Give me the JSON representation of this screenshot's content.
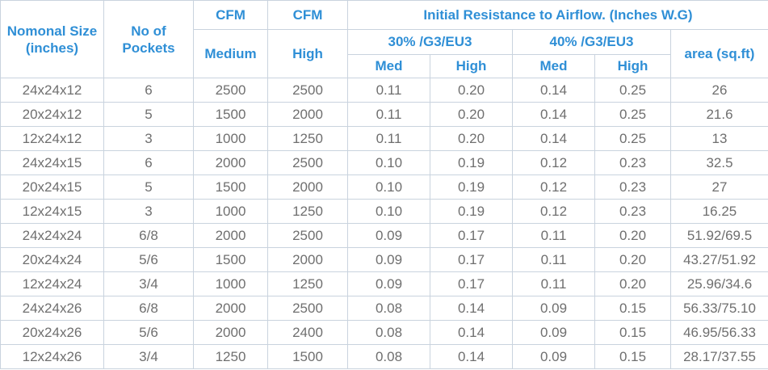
{
  "headers": {
    "nominal_size": "Nomonal Size (inches)",
    "no_of_pockets": "No of Pockets",
    "cfm_top_1": "CFM",
    "cfm_top_2": "CFM",
    "cfm_medium": "Medium",
    "cfm_high": "High",
    "initial_resistance": "Initial Resistance to Airflow. (Inches W.G)",
    "group_30": "30% /G3/EU3",
    "group_40": "40% /G3/EU3",
    "area": "area (sq.ft)",
    "med_30": "Med",
    "high_30": "High",
    "med_40": "Med",
    "high_40": "High"
  },
  "rows": [
    [
      "24x24x12",
      "6",
      "2500",
      "2500",
      "0.11",
      "0.20",
      "0.14",
      "0.25",
      "26"
    ],
    [
      "20x24x12",
      "5",
      "1500",
      "2000",
      "0.11",
      "0.20",
      "0.14",
      "0.25",
      "21.6"
    ],
    [
      "12x24x12",
      "3",
      "1000",
      "1250",
      "0.11",
      "0.20",
      "0.14",
      "0.25",
      "13"
    ],
    [
      "24x24x15",
      "6",
      "2000",
      "2500",
      "0.10",
      "0.19",
      "0.12",
      "0.23",
      "32.5"
    ],
    [
      "20x24x15",
      "5",
      "1500",
      "2000",
      "0.10",
      "0.19",
      "0.12",
      "0.23",
      "27"
    ],
    [
      "12x24x15",
      "3",
      "1000",
      "1250",
      "0.10",
      "0.19",
      "0.12",
      "0.23",
      "16.25"
    ],
    [
      "24x24x24",
      "6/8",
      "2000",
      "2500",
      "0.09",
      "0.17",
      "0.11",
      "0.20",
      "51.92/69.5"
    ],
    [
      "20x24x24",
      "5/6",
      "1500",
      "2000",
      "0.09",
      "0.17",
      "0.11",
      "0.20",
      "43.27/51.92"
    ],
    [
      "12x24x24",
      "3/4",
      "1000",
      "1250",
      "0.09",
      "0.17",
      "0.11",
      "0.20",
      "25.96/34.6"
    ],
    [
      "24x24x26",
      "6/8",
      "2000",
      "2500",
      "0.08",
      "0.14",
      "0.09",
      "0.15",
      "56.33/75.10"
    ],
    [
      "20x24x26",
      "5/6",
      "2000",
      "2400",
      "0.08",
      "0.14",
      "0.09",
      "0.15",
      "46.95/56.33"
    ],
    [
      "12x24x26",
      "3/4",
      "1250",
      "1500",
      "0.08",
      "0.14",
      "0.09",
      "0.15",
      "28.17/37.55"
    ]
  ],
  "colors": {
    "header_text": "#2f8fd6",
    "body_text": "#6f6f6f",
    "border": "#c9d3de"
  }
}
